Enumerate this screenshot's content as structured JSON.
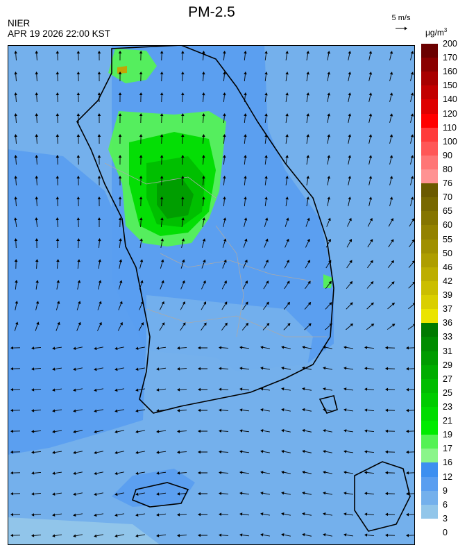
{
  "title": "PM-2.5",
  "agency": "NIER",
  "timestamp": "APR 19 2026 22:00 KST",
  "wind_reference": {
    "label": "5 m/s",
    "icon": "wind-vector-arrow"
  },
  "unit": {
    "base": "μg/m",
    "exponent": "3"
  },
  "legend": {
    "labels": [
      "200",
      "170",
      "160",
      "150",
      "140",
      "120",
      "110",
      "100",
      "90",
      "80",
      "76",
      "70",
      "65",
      "60",
      "55",
      "50",
      "46",
      "42",
      "39",
      "37",
      "36",
      "33",
      "31",
      "29",
      "27",
      "25",
      "23",
      "21",
      "19",
      "17",
      "16",
      "12",
      "9",
      "6",
      "3",
      "0"
    ],
    "colors": [
      "#6b0000",
      "#8a0000",
      "#a80000",
      "#c20000",
      "#de0000",
      "#ff0000",
      "#ff3b3b",
      "#ff5757",
      "#ff7676",
      "#ff9393",
      "#6b5a00",
      "#786800",
      "#857500",
      "#938200",
      "#a09000",
      "#ae9e00",
      "#bdae00",
      "#cbbe00",
      "#dacf00",
      "#ebe400",
      "#007a00",
      "#008c00",
      "#009c00",
      "#00ad00",
      "#00bd00",
      "#00cc00",
      "#00dc00",
      "#00eb00",
      "#55f255",
      "#8af58a",
      "#3d8ff0",
      "#5a9ef0",
      "#74b0ec",
      "#92c6ea"
    ]
  },
  "scene_colors": {
    "blue_far": "#92c6ea",
    "blue_mid": "#74b0ec",
    "blue": "#5a9ef0",
    "blue_deep": "#3d8ff0",
    "green_light": "#55f255",
    "green": "#00dc00",
    "green_mid": "#00bd00",
    "green_dark": "#009c00",
    "orange": "#c8a000",
    "coast": "#000000",
    "border": "#aaaaaa"
  }
}
